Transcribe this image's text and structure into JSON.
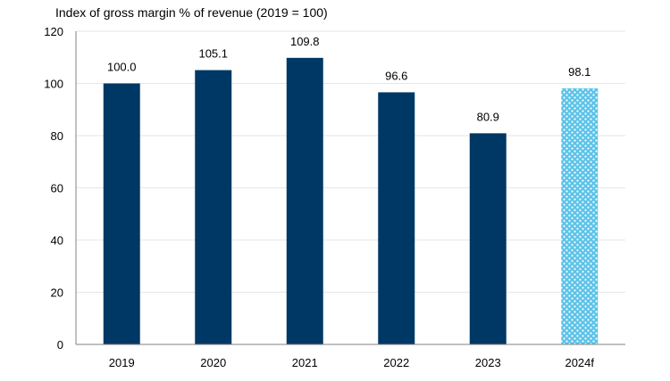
{
  "chart_data": {
    "type": "bar",
    "title": "Index of gross margin % of revenue (2019 = 100)",
    "xlabel": "",
    "ylabel": "",
    "categories": [
      "2019",
      "2020",
      "2021",
      "2022",
      "2023",
      "2024f"
    ],
    "values": [
      100.0,
      105.1,
      109.8,
      96.6,
      80.9,
      98.1
    ],
    "data_labels": [
      "100.0",
      "105.1",
      "109.8",
      "96.6",
      "80.9",
      "98.1"
    ],
    "forecast": [
      false,
      false,
      false,
      false,
      false,
      true
    ],
    "ylim": [
      0,
      120
    ],
    "yticks": [
      0,
      20,
      40,
      60,
      80,
      100,
      120
    ],
    "grid": true,
    "legend": "none",
    "colors": {
      "actual": "#003865",
      "forecast": "#5BC3E8",
      "forecast_pattern": "#FFFFFF",
      "grid": "#E6E6E6",
      "axis": "#808080"
    }
  }
}
